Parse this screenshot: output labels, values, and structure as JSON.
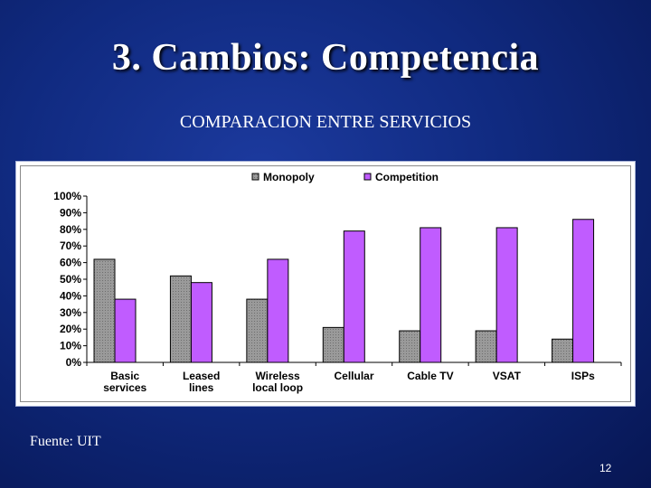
{
  "slide": {
    "title": "3. Cambios: Competencia",
    "subtitle": "COMPARACION ENTRE SERVICIOS",
    "source": "Fuente: UIT",
    "page_number": "12"
  },
  "colors": {
    "monopoly": "#909090",
    "competition": "#c05cff"
  },
  "chart_data": {
    "type": "bar",
    "title": "",
    "xlabel": "",
    "ylabel": "",
    "categories": [
      [
        "Basic",
        "services"
      ],
      [
        "Leased",
        "lines"
      ],
      [
        "Wireless",
        "local loop"
      ],
      [
        "Cellular"
      ],
      [
        "Cable TV"
      ],
      [
        "VSAT"
      ],
      [
        "ISPs"
      ]
    ],
    "series": [
      {
        "name": "Monopoly",
        "values": [
          62,
          52,
          38,
          21,
          19,
          19,
          14
        ]
      },
      {
        "name": "Competition",
        "values": [
          38,
          48,
          62,
          79,
          81,
          81,
          86
        ]
      }
    ],
    "ylim": [
      0,
      100
    ],
    "yticks": [
      0,
      10,
      20,
      30,
      40,
      50,
      60,
      70,
      80,
      90,
      100
    ],
    "ytick_suffix": "%",
    "legend_position": "top-center",
    "grid": false
  }
}
